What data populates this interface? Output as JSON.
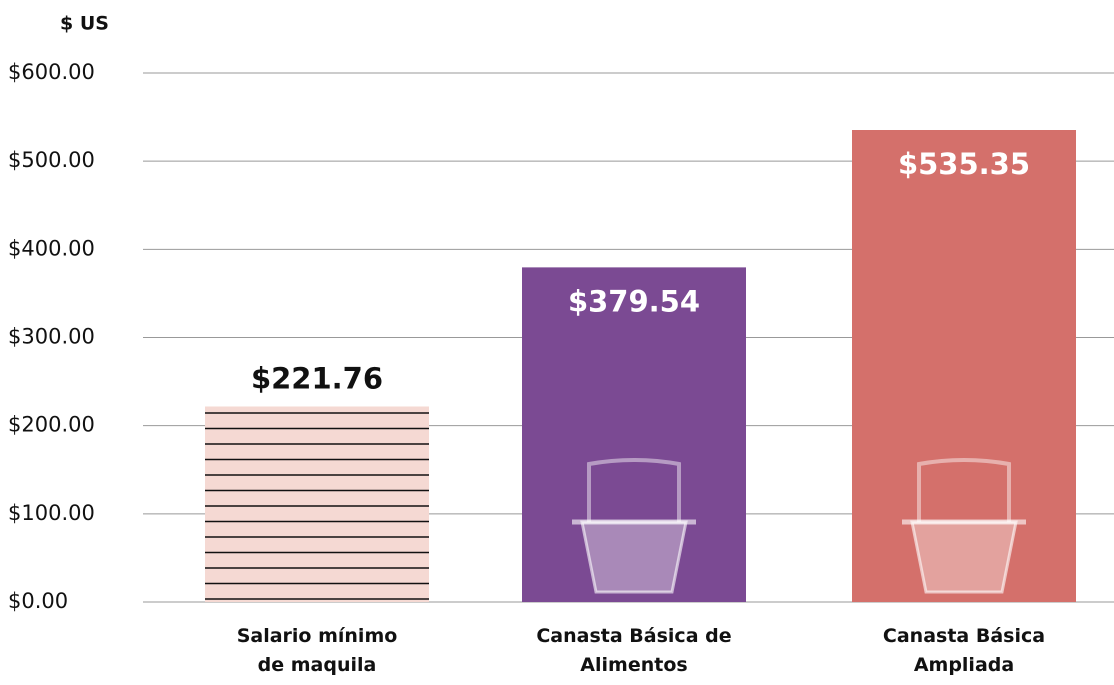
{
  "chart_data": {
    "type": "bar",
    "y_axis_label": "$ US",
    "categories": [
      "Salario mínimo de maquila",
      "Canasta Básica de Alimentos",
      "Canasta Básica Ampliada"
    ],
    "values": [
      221.76,
      379.54,
      535.35
    ],
    "value_labels": [
      "$221.76",
      "$379.54",
      "$535.35"
    ],
    "colors": [
      "#f5d9d3",
      "#7b4a93",
      "#d4706b"
    ],
    "striped": [
      true,
      false,
      false
    ],
    "ylim": [
      0,
      600
    ],
    "yticks": [
      {
        "value": 0,
        "label": "$0.00"
      },
      {
        "value": 100,
        "label": "$100.00"
      },
      {
        "value": 200,
        "label": "$200.00"
      },
      {
        "value": 300,
        "label": "$300.00"
      },
      {
        "value": 400,
        "label": "$400.00"
      },
      {
        "value": 500,
        "label": "$500.00"
      },
      {
        "value": 600,
        "label": "$600.00"
      }
    ],
    "grid": true
  }
}
